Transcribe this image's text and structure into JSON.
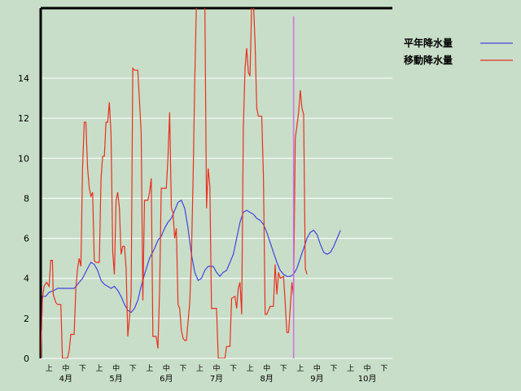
{
  "chart_data": {
    "type": "line",
    "y_ticks": [
      "0",
      "2",
      "4",
      "6",
      "8",
      "10",
      "12",
      "14"
    ],
    "ylim": [
      0,
      17.5
    ],
    "dekad_labels": [
      "上",
      "中",
      "下"
    ],
    "months": [
      "4月",
      "5月",
      "6月",
      "7月",
      "8月",
      "9月",
      "10月"
    ],
    "x_range": [
      0,
      21
    ],
    "grid": true,
    "legend_position": "top-right",
    "current_marker_x": 15.1,
    "colors": {
      "background": "#c8dec8",
      "grid": "#ffffff",
      "axis": "#000000",
      "marker": "#d070e0"
    },
    "series": [
      {
        "name": "平年降水量",
        "color": "#4444dd",
        "points": [
          [
            0,
            0
          ],
          [
            0.1,
            3.1
          ],
          [
            0.3,
            3.1
          ],
          [
            0.5,
            3.3
          ],
          [
            0.8,
            3.4
          ],
          [
            1.0,
            3.5
          ],
          [
            1.5,
            3.5
          ],
          [
            2.0,
            3.5
          ],
          [
            2.3,
            3.8
          ],
          [
            2.5,
            4.0
          ],
          [
            2.8,
            4.5
          ],
          [
            3.0,
            4.8
          ],
          [
            3.2,
            4.7
          ],
          [
            3.4,
            4.4
          ],
          [
            3.6,
            3.9
          ],
          [
            3.8,
            3.7
          ],
          [
            4.0,
            3.6
          ],
          [
            4.2,
            3.5
          ],
          [
            4.4,
            3.6
          ],
          [
            4.6,
            3.4
          ],
          [
            4.8,
            3.1
          ],
          [
            5.0,
            2.7
          ],
          [
            5.2,
            2.4
          ],
          [
            5.4,
            2.3
          ],
          [
            5.6,
            2.5
          ],
          [
            5.8,
            2.9
          ],
          [
            6.0,
            3.6
          ],
          [
            6.2,
            4.2
          ],
          [
            6.5,
            5.0
          ],
          [
            6.8,
            5.5
          ],
          [
            7.0,
            5.9
          ],
          [
            7.2,
            6.1
          ],
          [
            7.4,
            6.5
          ],
          [
            7.6,
            6.8
          ],
          [
            7.8,
            7.0
          ],
          [
            8.0,
            7.4
          ],
          [
            8.2,
            7.8
          ],
          [
            8.4,
            7.9
          ],
          [
            8.6,
            7.5
          ],
          [
            8.8,
            6.5
          ],
          [
            9.0,
            5.2
          ],
          [
            9.2,
            4.3
          ],
          [
            9.4,
            3.9
          ],
          [
            9.6,
            4.0
          ],
          [
            9.8,
            4.4
          ],
          [
            10.0,
            4.6
          ],
          [
            10.3,
            4.6
          ],
          [
            10.5,
            4.3
          ],
          [
            10.7,
            4.1
          ],
          [
            10.9,
            4.3
          ],
          [
            11.1,
            4.4
          ],
          [
            11.3,
            4.8
          ],
          [
            11.5,
            5.2
          ],
          [
            11.7,
            6.0
          ],
          [
            11.9,
            6.8
          ],
          [
            12.1,
            7.3
          ],
          [
            12.3,
            7.4
          ],
          [
            12.5,
            7.3
          ],
          [
            12.7,
            7.2
          ],
          [
            12.9,
            7.0
          ],
          [
            13.1,
            6.9
          ],
          [
            13.3,
            6.7
          ],
          [
            13.5,
            6.3
          ],
          [
            13.7,
            5.8
          ],
          [
            13.9,
            5.3
          ],
          [
            14.1,
            4.8
          ],
          [
            14.3,
            4.4
          ],
          [
            14.5,
            4.2
          ],
          [
            14.7,
            4.1
          ],
          [
            14.9,
            4.1
          ],
          [
            15.1,
            4.2
          ],
          [
            15.3,
            4.5
          ],
          [
            15.5,
            5.0
          ],
          [
            15.7,
            5.5
          ],
          [
            15.9,
            6.0
          ],
          [
            16.1,
            6.3
          ],
          [
            16.3,
            6.4
          ],
          [
            16.5,
            6.2
          ],
          [
            16.7,
            5.7
          ],
          [
            16.9,
            5.3
          ],
          [
            17.1,
            5.2
          ],
          [
            17.3,
            5.3
          ],
          [
            17.5,
            5.6
          ],
          [
            17.7,
            6.0
          ],
          [
            17.9,
            6.4
          ]
        ]
      },
      {
        "name": "移動降水量",
        "color": "#e83020",
        "points": [
          [
            0,
            0
          ],
          [
            0.1,
            3.0
          ],
          [
            0.2,
            3.6
          ],
          [
            0.35,
            3.8
          ],
          [
            0.5,
            3.6
          ],
          [
            0.6,
            4.9
          ],
          [
            0.7,
            4.9
          ],
          [
            0.75,
            3.2
          ],
          [
            0.9,
            2.8
          ],
          [
            1.0,
            2.7
          ],
          [
            1.2,
            2.7
          ],
          [
            1.3,
            0
          ],
          [
            1.4,
            0
          ],
          [
            1.6,
            0
          ],
          [
            1.7,
            0.4
          ],
          [
            1.8,
            1.2
          ],
          [
            2.0,
            1.2
          ],
          [
            2.1,
            3.5
          ],
          [
            2.2,
            4.5
          ],
          [
            2.3,
            5.0
          ],
          [
            2.4,
            4.6
          ],
          [
            2.5,
            9.5
          ],
          [
            2.6,
            11.8
          ],
          [
            2.7,
            11.8
          ],
          [
            2.8,
            9.5
          ],
          [
            2.9,
            8.5
          ],
          [
            3.0,
            8.1
          ],
          [
            3.1,
            8.3
          ],
          [
            3.2,
            4.9
          ],
          [
            3.3,
            4.8
          ],
          [
            3.5,
            4.8
          ],
          [
            3.6,
            9.0
          ],
          [
            3.7,
            10.1
          ],
          [
            3.8,
            10.1
          ],
          [
            3.9,
            11.8
          ],
          [
            4.0,
            11.8
          ],
          [
            4.1,
            12.8
          ],
          [
            4.2,
            11.2
          ],
          [
            4.3,
            5.3
          ],
          [
            4.4,
            4.2
          ],
          [
            4.5,
            7.9
          ],
          [
            4.6,
            8.3
          ],
          [
            4.7,
            7.5
          ],
          [
            4.8,
            5.2
          ],
          [
            4.9,
            5.6
          ],
          [
            5.0,
            5.6
          ],
          [
            5.1,
            4.5
          ],
          [
            5.2,
            1.1
          ],
          [
            5.3,
            2.0
          ],
          [
            5.4,
            3.2
          ],
          [
            5.5,
            14.5
          ],
          [
            5.6,
            14.4
          ],
          [
            5.8,
            14.4
          ],
          [
            5.9,
            12.8
          ],
          [
            6.0,
            11.3
          ],
          [
            6.1,
            2.9
          ],
          [
            6.2,
            7.9
          ],
          [
            6.4,
            7.9
          ],
          [
            6.5,
            8.3
          ],
          [
            6.6,
            9.0
          ],
          [
            6.7,
            1.1
          ],
          [
            6.9,
            1.1
          ],
          [
            7.0,
            0.5
          ],
          [
            7.1,
            3.5
          ],
          [
            7.2,
            8.5
          ],
          [
            7.3,
            8.5
          ],
          [
            7.5,
            8.5
          ],
          [
            7.6,
            10.0
          ],
          [
            7.7,
            12.3
          ],
          [
            7.8,
            7.5
          ],
          [
            7.9,
            7.3
          ],
          [
            8.0,
            6.0
          ],
          [
            8.1,
            6.5
          ],
          [
            8.2,
            2.7
          ],
          [
            8.3,
            2.5
          ],
          [
            8.4,
            1.4
          ],
          [
            8.5,
            1.0
          ],
          [
            8.6,
            0.9
          ],
          [
            8.7,
            0.9
          ],
          [
            8.9,
            2.8
          ],
          [
            9.0,
            5.0
          ],
          [
            9.1,
            9.0
          ],
          [
            9.2,
            14.0
          ],
          [
            9.3,
            17.8
          ],
          [
            9.4,
            17.8
          ],
          [
            9.5,
            17.8
          ],
          [
            9.6,
            17.8
          ],
          [
            9.7,
            17.8
          ],
          [
            9.8,
            17.8
          ],
          [
            9.9,
            7.5
          ],
          [
            10.0,
            9.5
          ],
          [
            10.1,
            8.6
          ],
          [
            10.2,
            2.5
          ],
          [
            10.3,
            2.5
          ],
          [
            10.5,
            2.5
          ],
          [
            10.6,
            0
          ],
          [
            10.8,
            0
          ],
          [
            11.0,
            0
          ],
          [
            11.1,
            0.6
          ],
          [
            11.3,
            0.6
          ],
          [
            11.4,
            3.0
          ],
          [
            11.6,
            3.1
          ],
          [
            11.7,
            2.5
          ],
          [
            11.8,
            3.5
          ],
          [
            11.9,
            3.8
          ],
          [
            12.0,
            2.2
          ],
          [
            12.1,
            11.5
          ],
          [
            12.2,
            14.5
          ],
          [
            12.3,
            15.5
          ],
          [
            12.4,
            14.3
          ],
          [
            12.5,
            14.1
          ],
          [
            12.6,
            17.8
          ],
          [
            12.7,
            17.8
          ],
          [
            12.8,
            15.8
          ],
          [
            12.9,
            12.5
          ],
          [
            13.0,
            12.1
          ],
          [
            13.2,
            12.1
          ],
          [
            13.3,
            9.1
          ],
          [
            13.4,
            2.2
          ],
          [
            13.5,
            2.2
          ],
          [
            13.7,
            2.6
          ],
          [
            13.9,
            2.6
          ],
          [
            14.0,
            4.7
          ],
          [
            14.1,
            3.2
          ],
          [
            14.2,
            4.3
          ],
          [
            14.3,
            4.0
          ],
          [
            14.5,
            4.1
          ],
          [
            14.6,
            2.8
          ],
          [
            14.7,
            1.3
          ],
          [
            14.8,
            1.3
          ],
          [
            14.9,
            2.5
          ],
          [
            15.0,
            3.8
          ],
          [
            15.1,
            3.1
          ],
          [
            15.2,
            11.0
          ],
          [
            15.3,
            11.6
          ],
          [
            15.4,
            12.3
          ],
          [
            15.5,
            13.4
          ],
          [
            15.6,
            12.5
          ],
          [
            15.7,
            12.2
          ],
          [
            15.8,
            4.5
          ],
          [
            15.9,
            4.2
          ]
        ]
      }
    ]
  }
}
